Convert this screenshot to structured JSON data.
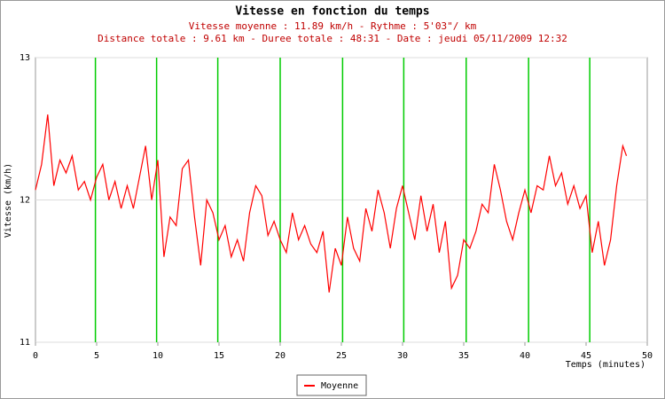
{
  "chart_data": {
    "type": "line",
    "title": "Vitesse en fonction du temps",
    "subtitle": "Vitesse moyenne : 11.89 km/h - Rythme : 5'03\"/ km",
    "subtitle2": "Distance totale : 9.61 km - Duree totale : 48:31 - Date : jeudi 05/11/2009 12:32",
    "y_label": "Vitesse (km/h)",
    "x_label": "Temps (minutes)",
    "x": [
      0,
      0.5,
      1,
      1.5,
      2,
      2.5,
      3,
      3.5,
      4,
      4.5,
      5,
      5.5,
      6,
      6.5,
      7,
      7.5,
      8,
      8.5,
      9,
      9.5,
      10,
      10.5,
      11,
      11.5,
      12,
      12.5,
      13,
      13.5,
      14,
      14.5,
      15,
      15.5,
      16,
      16.5,
      17,
      17.5,
      18,
      18.5,
      19,
      19.5,
      20,
      20.5,
      21,
      21.5,
      22,
      22.5,
      23,
      23.5,
      24,
      24.5,
      25,
      25.5,
      26,
      26.5,
      27,
      27.5,
      28,
      28.5,
      29,
      29.5,
      30,
      30.5,
      31,
      31.5,
      32,
      32.5,
      33,
      33.5,
      34,
      34.5,
      35,
      35.5,
      36,
      36.5,
      37,
      37.5,
      38,
      38.5,
      39,
      39.5,
      40,
      40.5,
      41,
      41.5,
      42,
      42.5,
      43,
      43.5,
      44,
      44.5,
      45,
      45.5,
      46,
      46.5,
      47,
      47.5,
      48,
      48.3
    ],
    "series": [
      {
        "name": "Moyenne",
        "color": "#ff0000",
        "values": [
          12.07,
          12.25,
          12.6,
          12.1,
          12.28,
          12.19,
          12.31,
          12.07,
          12.13,
          12.0,
          12.16,
          12.25,
          12.0,
          12.13,
          11.94,
          12.1,
          11.94,
          12.16,
          12.38,
          12.0,
          12.28,
          11.6,
          11.88,
          11.82,
          12.22,
          12.28,
          11.88,
          11.54,
          12.0,
          11.91,
          11.72,
          11.82,
          11.6,
          11.72,
          11.57,
          11.91,
          12.1,
          12.03,
          11.75,
          11.85,
          11.72,
          11.63,
          11.91,
          11.72,
          11.82,
          11.69,
          11.63,
          11.78,
          11.35,
          11.66,
          11.54,
          11.88,
          11.66,
          11.57,
          11.94,
          11.78,
          12.07,
          11.91,
          11.66,
          11.94,
          12.1,
          11.91,
          11.72,
          12.03,
          11.78,
          11.97,
          11.63,
          11.85,
          11.38,
          11.47,
          11.72,
          11.66,
          11.78,
          11.97,
          11.91,
          12.25,
          12.07,
          11.85,
          11.72,
          11.91,
          12.07,
          11.91,
          12.1,
          12.07,
          12.31,
          12.1,
          12.19,
          11.97,
          12.1,
          11.94,
          12.03,
          11.63,
          11.85,
          11.54,
          11.72,
          12.1,
          12.38,
          12.31
        ]
      }
    ],
    "markers": {
      "color": "#00cc00",
      "x": [
        4.9,
        9.9,
        14.9,
        20.0,
        25.1,
        30.1,
        35.2,
        40.3,
        45.3
      ]
    },
    "xlim": [
      0,
      50
    ],
    "xticks": [
      0,
      5,
      10,
      15,
      20,
      25,
      30,
      35,
      40,
      45,
      50
    ],
    "ylim": [
      11,
      13
    ],
    "yticks": [
      11,
      12,
      13
    ],
    "grid": true
  }
}
